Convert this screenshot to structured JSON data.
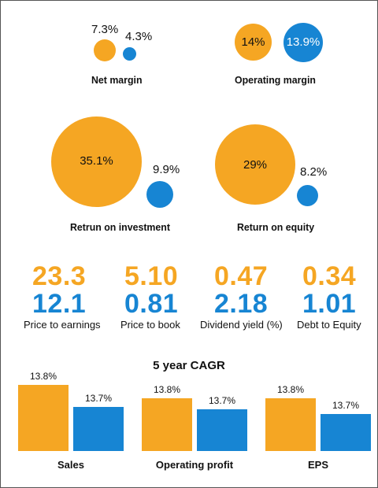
{
  "colors": {
    "orange": "#F5A623",
    "blue": "#1785D3"
  },
  "margins": [
    {
      "name": "Net margin",
      "values": [
        "7.3%",
        "4.3%"
      ],
      "numeric": [
        7.3,
        4.3
      ]
    },
    {
      "name": "Operating margin",
      "values": [
        "14%",
        "13.9%"
      ],
      "numeric": [
        14,
        13.9
      ]
    },
    {
      "name": "Retrun on investment",
      "values": [
        "35.1%",
        "9.9%"
      ],
      "numeric": [
        35.1,
        9.9
      ]
    },
    {
      "name": "Return on equity",
      "values": [
        "29%",
        "8.2%"
      ],
      "numeric": [
        29,
        8.2
      ]
    }
  ],
  "ratios": [
    {
      "label": "Price to earnings",
      "orange": "23.3",
      "blue": "12.1"
    },
    {
      "label": "Price to book",
      "orange": "5.10",
      "blue": "0.81"
    },
    {
      "label": "Dividend yield (%)",
      "orange": "0.47",
      "blue": "2.18"
    },
    {
      "label": "Debt to Equity",
      "orange": "0.34",
      "blue": "1.01"
    }
  ],
  "chart_data": {
    "type": "bar",
    "title": "5 year CAGR",
    "categories": [
      "Sales",
      "Operating profit",
      "EPS"
    ],
    "series": [
      {
        "values": [
          13.8,
          13.8,
          13.8
        ],
        "labels": [
          "13.8%",
          "13.8%",
          "13.8%"
        ]
      },
      {
        "values": [
          13.7,
          13.7,
          13.7
        ],
        "labels": [
          "13.7%",
          "13.7%",
          "13.7%"
        ]
      }
    ]
  }
}
